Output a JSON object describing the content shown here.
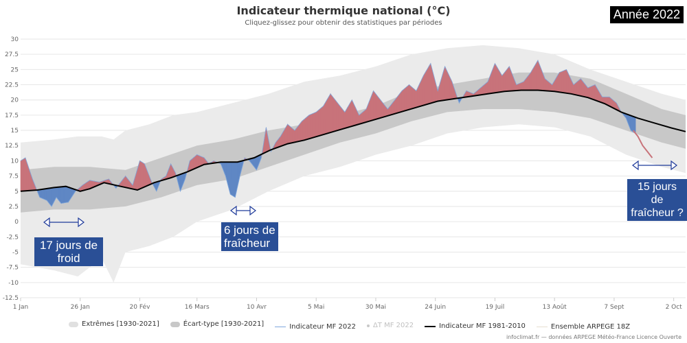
{
  "title": "Indicateur thermique national (°C)",
  "subtitle": "Cliquez-glissez pour obtenir des statistiques par périodes",
  "year_badge": "Année 2022",
  "credit": "infoclimat.fr — données ARPEGE Météo-France Licence Ouverte",
  "annotations": {
    "cold_17": "17 jours de froid",
    "cool_6_line1": "6 jours de",
    "cool_6_line2": "fraîcheur",
    "cool_15_line1": "15 jours de",
    "cool_15_line2": "fraîcheur ?"
  },
  "colors": {
    "extremes": "#ebebeb",
    "stddev": "#c8c8c8",
    "warm_anomaly": "#c8737a",
    "cold_anomaly": "#5f87c4",
    "normal": "#000000",
    "callout_bg": "#2a4f96"
  },
  "chart_data": {
    "type": "area",
    "title": "Indicateur thermique national (°C)",
    "xlabel": "",
    "ylabel": "",
    "ylim": [
      -12.5,
      30
    ],
    "xlim_day_of_year": [
      1,
      280
    ],
    "grid": true,
    "legend_position": "bottom",
    "y_ticks": [
      "-12.5",
      "-10",
      "-7.5",
      "-5",
      "-2.5",
      "0",
      "2.5",
      "5",
      "7.5",
      "10",
      "12.5",
      "15",
      "17.5",
      "20",
      "22.5",
      "25",
      "27.5",
      "30"
    ],
    "x_ticks": [
      {
        "label": "1 Jan",
        "day": 1
      },
      {
        "label": "26 Jan",
        "day": 26
      },
      {
        "label": "20 Fév",
        "day": 51
      },
      {
        "label": "16 Mars",
        "day": 75
      },
      {
        "label": "10 Avr",
        "day": 100
      },
      {
        "label": "5 Mai",
        "day": 125
      },
      {
        "label": "30 Mai",
        "day": 150
      },
      {
        "label": "24 Juin",
        "day": 175
      },
      {
        "label": "19 Juil",
        "day": 200
      },
      {
        "label": "13 Août",
        "day": 225
      },
      {
        "label": "7 Sept",
        "day": 250
      },
      {
        "label": "2 Oct",
        "day": 275
      }
    ],
    "legend": [
      {
        "label": "Extrêmes [1930-2021]",
        "color": "#e0e0e0",
        "shape": "area"
      },
      {
        "label": "Écart-type [1930-2021]",
        "color": "#c8c8c8",
        "shape": "area"
      },
      {
        "label": "Indicateur MF 2022",
        "color": "#7ea6dc",
        "shape": "line"
      },
      {
        "label": "ΔT MF 2022",
        "color": "#c8c8c8",
        "shape": "dot",
        "disabled": true
      },
      {
        "label": "Indicateur MF 1981-2010",
        "color": "#000000",
        "shape": "line"
      },
      {
        "label": "Ensemble ARPEGE 18Z",
        "color": "#e6dfd0",
        "shape": "line"
      }
    ],
    "series": [
      {
        "name": "Indicateur MF 1981-2010",
        "x": [
          1,
          8,
          15,
          20,
          26,
          30,
          36,
          43,
          50,
          57,
          64,
          71,
          78,
          85,
          92,
          99,
          106,
          113,
          120,
          127,
          134,
          141,
          148,
          155,
          162,
          169,
          176,
          183,
          190,
          197,
          204,
          211,
          218,
          225,
          232,
          239,
          246,
          253,
          260,
          267,
          274,
          280
        ],
        "y": [
          5.0,
          5.2,
          5.6,
          5.8,
          5.0,
          5.4,
          6.4,
          5.8,
          5.2,
          6.4,
          7.2,
          8.2,
          9.4,
          9.8,
          9.8,
          10.5,
          11.8,
          12.8,
          13.4,
          14.2,
          15.0,
          15.8,
          16.6,
          17.4,
          18.2,
          19.0,
          19.8,
          20.2,
          20.6,
          21.0,
          21.4,
          21.6,
          21.6,
          21.4,
          21.0,
          20.4,
          19.4,
          18.0,
          17.0,
          16.2,
          15.4,
          14.8
        ]
      },
      {
        "name": "Indicateur MF 2022",
        "x": [
          1,
          3,
          6,
          9,
          12,
          14,
          16,
          18,
          21,
          24,
          27,
          30,
          34,
          38,
          41,
          45,
          48,
          51,
          53,
          56,
          58,
          60,
          62,
          64,
          66,
          68,
          70,
          72,
          75,
          78,
          80,
          82,
          85,
          87,
          89,
          91,
          93,
          95,
          97,
          100,
          102,
          104,
          106,
          108,
          110,
          113,
          116,
          119,
          122,
          125,
          128,
          131,
          134,
          137,
          140,
          143,
          146,
          149,
          152,
          155,
          158,
          161,
          164,
          167,
          170,
          173,
          176,
          179,
          182,
          185,
          188,
          191,
          194,
          197,
          200,
          203,
          206,
          209,
          212,
          215,
          218,
          221,
          224,
          227,
          230,
          233,
          236,
          239,
          242,
          245,
          248,
          251,
          253,
          255,
          257,
          259
        ],
        "y": [
          10.0,
          10.5,
          7.0,
          4.0,
          3.5,
          2.5,
          4.0,
          3.0,
          3.2,
          5.0,
          6.0,
          6.8,
          6.5,
          7.0,
          5.5,
          7.5,
          6.0,
          10.0,
          9.5,
          6.5,
          5.0,
          7.0,
          7.5,
          9.5,
          8.0,
          5.0,
          7.0,
          10.0,
          11.0,
          10.5,
          9.5,
          10.0,
          9.5,
          7.5,
          4.5,
          4.0,
          7.5,
          10.5,
          10.0,
          8.5,
          10.5,
          15.5,
          11.5,
          13.0,
          14.0,
          16.0,
          15.0,
          16.5,
          17.5,
          18.0,
          19.0,
          21.0,
          19.5,
          18.0,
          20.0,
          17.5,
          18.5,
          21.5,
          20.0,
          18.5,
          20.0,
          21.5,
          22.5,
          21.5,
          24.0,
          26.0,
          21.5,
          25.5,
          23.0,
          19.5,
          21.5,
          21.0,
          22.0,
          23.0,
          26.0,
          24.0,
          25.5,
          22.5,
          23.0,
          24.5,
          26.5,
          23.5,
          22.5,
          24.5,
          25.0,
          22.5,
          23.5,
          22.0,
          22.5,
          20.5,
          20.5,
          19.5,
          18.0,
          17.0,
          15.0,
          14.5
        ]
      },
      {
        "name": "Ensemble ARPEGE 18Z",
        "x": [
          258,
          260,
          262,
          264,
          266
        ],
        "y": [
          15.0,
          14.0,
          12.5,
          11.5,
          10.5
        ]
      }
    ],
    "bands": [
      {
        "name": "Écart-type [1930-2021]",
        "x": [
          1,
          15,
          30,
          45,
          60,
          75,
          90,
          105,
          120,
          135,
          150,
          165,
          180,
          195,
          210,
          225,
          240,
          255,
          270,
          280
        ],
        "lower": [
          1.5,
          2.0,
          2.0,
          2.5,
          4.0,
          6.0,
          7.0,
          9.0,
          11.0,
          13.0,
          14.5,
          16.5,
          18.0,
          18.5,
          18.5,
          18.0,
          17.0,
          15.0,
          13.0,
          12.0
        ],
        "upper": [
          8.5,
          9.0,
          9.0,
          8.5,
          10.5,
          12.5,
          13.5,
          15.0,
          16.0,
          17.5,
          19.0,
          21.5,
          22.5,
          23.5,
          24.5,
          24.5,
          23.5,
          21.0,
          18.5,
          17.5
        ]
      },
      {
        "name": "Extrêmes [1930-2021]",
        "x": [
          1,
          15,
          25,
          35,
          40,
          45,
          55,
          65,
          75,
          90,
          105,
          120,
          135,
          150,
          165,
          180,
          195,
          210,
          225,
          240,
          255,
          270,
          280
        ],
        "lower": [
          -7.0,
          -8.0,
          -9.0,
          -6.0,
          -10.0,
          -5.0,
          -4.0,
          -2.5,
          0.0,
          2.0,
          5.0,
          7.5,
          9.0,
          11.0,
          12.5,
          14.5,
          15.5,
          16.0,
          15.5,
          14.0,
          11.0,
          9.0,
          8.0
        ],
        "upper": [
          13.0,
          13.5,
          14.0,
          14.0,
          13.5,
          15.0,
          16.0,
          17.5,
          18.0,
          19.5,
          21.0,
          23.0,
          24.0,
          25.5,
          27.5,
          28.5,
          29.0,
          28.5,
          27.5,
          25.0,
          23.0,
          21.0,
          20.0
        ]
      }
    ]
  }
}
